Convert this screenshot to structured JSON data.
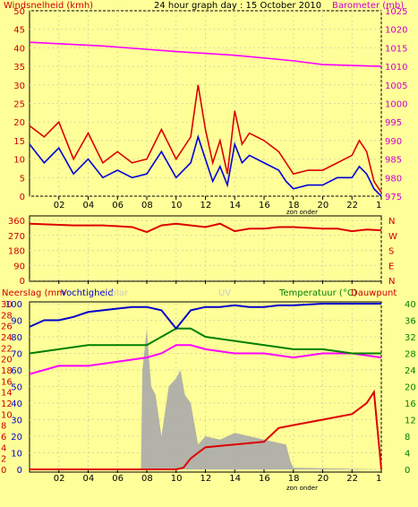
{
  "chart_data": [
    {
      "type": "line",
      "title": "24 hour graph day : 15 October 2010",
      "ylabel_left": "Windsnelheid (kmh)",
      "ylabel_right": "Barometer (mb)",
      "left_ticks": [
        0,
        5,
        10,
        15,
        20,
        25,
        30,
        35,
        40,
        45,
        50
      ],
      "right_ticks": [
        975,
        980,
        985,
        990,
        995,
        1000,
        1005,
        1010,
        1015,
        1020,
        1025
      ],
      "ylim": [
        0,
        50
      ],
      "ylim_right": [
        975,
        1025
      ],
      "x_ticks": [
        "02",
        "04",
        "06",
        "08",
        "10",
        "12",
        "14",
        "16",
        "18",
        "20",
        "22",
        "1"
      ],
      "annotation": "zon onder",
      "series": [
        {
          "color": "#ff00ff",
          "axis": "right",
          "x": [
            0,
            5,
            10,
            14,
            18,
            20,
            24
          ],
          "values": [
            1016.5,
            1015.5,
            1014,
            1013,
            1011.5,
            1010.5,
            1010
          ]
        },
        {
          "color": "#dd0000",
          "x": [
            0,
            1,
            2,
            3,
            4,
            5,
            6,
            7,
            8,
            9,
            10,
            11,
            11.5,
            12,
            12.5,
            13,
            13.5,
            14,
            14.5,
            15,
            16,
            17,
            17.5,
            18,
            19,
            20,
            21,
            22,
            22.5,
            23,
            23.5,
            24
          ],
          "values": [
            19,
            16,
            20,
            10,
            17,
            9,
            12,
            9,
            10,
            18,
            10,
            16,
            30,
            18,
            9,
            15,
            6,
            23,
            14,
            17,
            15,
            12,
            9,
            6,
            7,
            7,
            9,
            11,
            15,
            12,
            4,
            1
          ]
        },
        {
          "color": "#0000dd",
          "x": [
            0,
            1,
            2,
            3,
            4,
            5,
            6,
            7,
            8,
            9,
            10,
            11,
            11.5,
            12,
            12.5,
            13,
            13.5,
            14,
            14.5,
            15,
            16,
            17,
            17.5,
            18,
            19,
            20,
            21,
            22,
            22.5,
            23,
            23.5,
            24
          ],
          "values": [
            14,
            9,
            13,
            6,
            10,
            5,
            7,
            5,
            6,
            12,
            5,
            9,
            16,
            10,
            4,
            8,
            3,
            14,
            9,
            11,
            9,
            7,
            4,
            2,
            3,
            3,
            5,
            5,
            8,
            6,
            2,
            0
          ]
        }
      ]
    },
    {
      "type": "line",
      "right_letters": [
        "N",
        "W",
        "S",
        "E",
        "N"
      ],
      "left_ticks": [
        0,
        90,
        180,
        270,
        360
      ],
      "ylim": [
        0,
        360
      ],
      "series": [
        {
          "color": "#dd0000",
          "x": [
            0,
            3,
            5,
            7,
            8,
            9,
            10,
            11,
            12,
            13,
            14,
            15,
            16,
            17,
            18,
            20,
            21,
            22,
            23,
            24
          ],
          "values": [
            340,
            330,
            330,
            320,
            290,
            330,
            340,
            330,
            320,
            340,
            295,
            310,
            310,
            320,
            320,
            310,
            310,
            295,
            305,
            300
          ]
        }
      ]
    },
    {
      "type": "line",
      "ylabel_left": "Neerslag (mm",
      "ylabel_left2": "Vochtigheid",
      "faint_label": "olar",
      "faint_label2": "UV",
      "ylabel_right": "Temperatuur (°C)",
      "ylabel_right2": "Dauwpunt",
      "left_ticks_a": [
        0,
        2,
        4,
        6,
        8,
        10,
        12,
        14,
        16,
        18,
        20,
        22,
        24,
        26,
        28,
        30
      ],
      "left_ticks_b": [
        0,
        10,
        20,
        30,
        40,
        50,
        60,
        70,
        80,
        90,
        100
      ],
      "right_ticks": [
        0,
        4,
        8,
        12,
        16,
        20,
        24,
        28,
        32,
        36,
        40
      ],
      "right_tick_colors": "#008000",
      "x_ticks": [
        "02",
        "04",
        "06",
        "08",
        "10",
        "12",
        "14",
        "16",
        "18",
        "20",
        "22",
        "1"
      ],
      "annotation": "zon onder",
      "series": [
        {
          "color": "#0000cc",
          "x": [
            0,
            1,
            2,
            3,
            4,
            5,
            6,
            7,
            8,
            9,
            10,
            11,
            12,
            13,
            14,
            15,
            16,
            17,
            18,
            20,
            22,
            24
          ],
          "values": [
            86,
            90,
            90,
            92,
            95,
            96,
            97,
            98,
            98,
            96,
            85,
            96,
            98,
            98,
            99,
            98,
            98,
            99,
            99,
            100,
            100,
            100
          ]
        },
        {
          "color": "#008000",
          "x": [
            0,
            2,
            4,
            6,
            8,
            9,
            10,
            11,
            12,
            14,
            16,
            18,
            20,
            22,
            24
          ],
          "values": [
            28,
            29,
            30,
            30,
            30,
            32,
            34,
            34,
            32,
            31,
            30,
            29,
            29,
            28,
            28
          ]
        },
        {
          "color": "#ff00ff",
          "x": [
            0,
            2,
            4,
            6,
            8,
            9,
            10,
            11,
            12,
            14,
            16,
            18,
            20,
            22,
            24
          ],
          "values": [
            23,
            25,
            25,
            26,
            27,
            28,
            30,
            30,
            29,
            28,
            28,
            27,
            28,
            28,
            27
          ]
        },
        {
          "color": "#dd0000",
          "x": [
            0,
            5,
            10,
            10.5,
            11,
            12,
            14,
            16,
            17,
            18,
            20,
            22,
            23,
            23.5,
            24
          ],
          "values": [
            0,
            0,
            0,
            0.3,
            2,
            4,
            4.5,
            5,
            7.5,
            8,
            9,
            10,
            12,
            14,
            0
          ]
        },
        {
          "color": "#aaaaaa",
          "type": "area",
          "x": [
            0,
            7.6,
            7.7,
            8.0,
            8.3,
            8.6,
            9,
            9.5,
            10,
            10.3,
            10.6,
            11,
            11.5,
            12,
            13,
            14,
            15,
            16,
            17,
            17.5,
            17.8,
            18,
            24
          ],
          "values": [
            0,
            0,
            60,
            85,
            50,
            45,
            20,
            50,
            55,
            60,
            45,
            40,
            15,
            20,
            18,
            22,
            20,
            18,
            16,
            15,
            5,
            1,
            0
          ]
        }
      ]
    }
  ]
}
